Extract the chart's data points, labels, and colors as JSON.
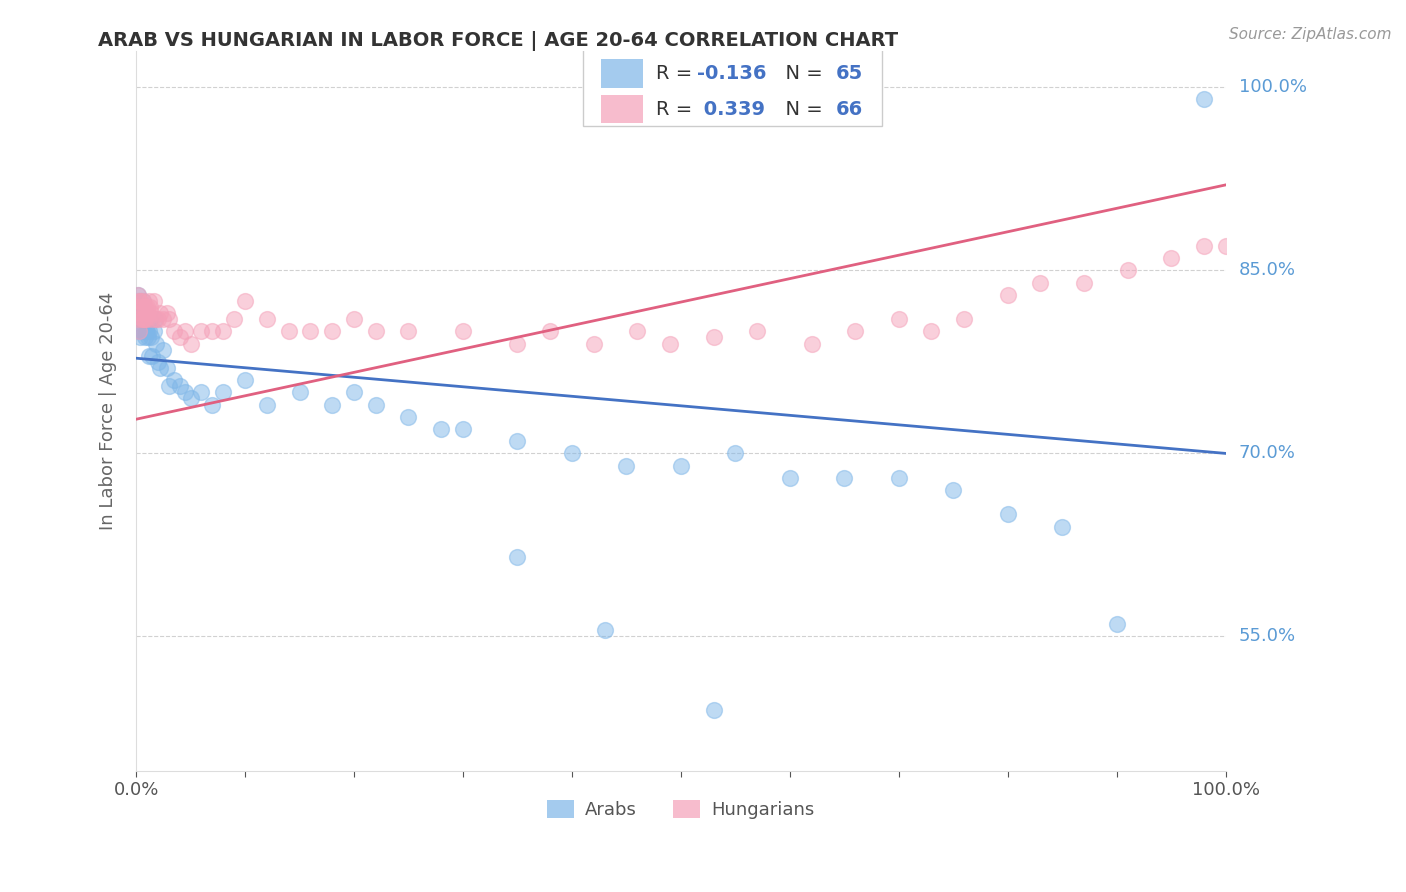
{
  "title": "ARAB VS HUNGARIAN IN LABOR FORCE | AGE 20-64 CORRELATION CHART",
  "source_text": "Source: ZipAtlas.com",
  "ylabel": "In Labor Force | Age 20-64",
  "xlim": [
    0.0,
    1.0
  ],
  "ylim": [
    0.44,
    1.03
  ],
  "yticks": [
    0.55,
    0.7,
    0.85,
    1.0
  ],
  "ytick_labels": [
    "55.0%",
    "70.0%",
    "85.0%",
    "100.0%"
  ],
  "xticks": [
    0.0,
    0.1,
    0.2,
    0.3,
    0.4,
    0.5,
    0.6,
    0.7,
    0.8,
    0.9,
    1.0
  ],
  "xtick_labels": [
    "0.0%",
    "",
    "",
    "",
    "",
    "",
    "",
    "",
    "",
    "",
    "100.0%"
  ],
  "arab_color": "#7EB6E8",
  "hungarian_color": "#F4A0B8",
  "arab_R": -0.136,
  "arab_N": 65,
  "hungarian_R": 0.339,
  "hungarian_N": 66,
  "background_color": "#ffffff",
  "grid_color": "#cccccc",
  "title_color": "#333333",
  "axis_label_color": "#666666",
  "right_label_color": "#5B9BD5",
  "arab_line_color": "#4472C4",
  "hungarian_line_color": "#E06080",
  "arab_line_x": [
    0.0,
    1.0
  ],
  "arab_line_y": [
    0.778,
    0.7
  ],
  "hungarian_line_x": [
    0.0,
    1.0
  ],
  "hungarian_line_y": [
    0.728,
    0.92
  ],
  "legend_color": "#4472C4",
  "arab_scatter_x": [
    0.001,
    0.002,
    0.002,
    0.003,
    0.003,
    0.004,
    0.004,
    0.005,
    0.005,
    0.006,
    0.006,
    0.007,
    0.007,
    0.008,
    0.008,
    0.009,
    0.009,
    0.01,
    0.01,
    0.011,
    0.012,
    0.012,
    0.013,
    0.014,
    0.015,
    0.016,
    0.017,
    0.018,
    0.02,
    0.022,
    0.025,
    0.028,
    0.03,
    0.035,
    0.04,
    0.045,
    0.05,
    0.06,
    0.07,
    0.08,
    0.1,
    0.12,
    0.15,
    0.18,
    0.2,
    0.22,
    0.25,
    0.28,
    0.3,
    0.35,
    0.4,
    0.45,
    0.5,
    0.55,
    0.6,
    0.65,
    0.7,
    0.75,
    0.8,
    0.85,
    0.9,
    0.35,
    0.43,
    0.53,
    0.98
  ],
  "arab_scatter_y": [
    0.82,
    0.83,
    0.81,
    0.8,
    0.825,
    0.815,
    0.795,
    0.8,
    0.82,
    0.825,
    0.81,
    0.8,
    0.815,
    0.795,
    0.81,
    0.8,
    0.815,
    0.8,
    0.81,
    0.795,
    0.8,
    0.78,
    0.81,
    0.795,
    0.78,
    0.8,
    0.81,
    0.79,
    0.775,
    0.77,
    0.785,
    0.77,
    0.755,
    0.76,
    0.755,
    0.75,
    0.745,
    0.75,
    0.74,
    0.75,
    0.76,
    0.74,
    0.75,
    0.74,
    0.75,
    0.74,
    0.73,
    0.72,
    0.72,
    0.71,
    0.7,
    0.69,
    0.69,
    0.7,
    0.68,
    0.68,
    0.68,
    0.67,
    0.65,
    0.64,
    0.56,
    0.615,
    0.555,
    0.49,
    0.99
  ],
  "hungarian_scatter_x": [
    0.001,
    0.002,
    0.002,
    0.003,
    0.003,
    0.004,
    0.004,
    0.005,
    0.005,
    0.006,
    0.006,
    0.007,
    0.007,
    0.008,
    0.008,
    0.009,
    0.01,
    0.01,
    0.011,
    0.012,
    0.013,
    0.014,
    0.015,
    0.016,
    0.018,
    0.02,
    0.022,
    0.025,
    0.028,
    0.03,
    0.035,
    0.04,
    0.045,
    0.05,
    0.06,
    0.07,
    0.08,
    0.09,
    0.1,
    0.12,
    0.14,
    0.16,
    0.18,
    0.2,
    0.22,
    0.25,
    0.3,
    0.35,
    0.38,
    0.42,
    0.46,
    0.49,
    0.53,
    0.57,
    0.62,
    0.66,
    0.7,
    0.73,
    0.76,
    0.8,
    0.83,
    0.87,
    0.91,
    0.95,
    0.98,
    1.0
  ],
  "hungarian_scatter_y": [
    0.82,
    0.83,
    0.81,
    0.825,
    0.8,
    0.815,
    0.825,
    0.82,
    0.81,
    0.825,
    0.81,
    0.82,
    0.81,
    0.82,
    0.81,
    0.815,
    0.82,
    0.81,
    0.815,
    0.825,
    0.82,
    0.815,
    0.81,
    0.825,
    0.81,
    0.81,
    0.815,
    0.81,
    0.815,
    0.81,
    0.8,
    0.795,
    0.8,
    0.79,
    0.8,
    0.8,
    0.8,
    0.81,
    0.825,
    0.81,
    0.8,
    0.8,
    0.8,
    0.81,
    0.8,
    0.8,
    0.8,
    0.79,
    0.8,
    0.79,
    0.8,
    0.79,
    0.795,
    0.8,
    0.79,
    0.8,
    0.81,
    0.8,
    0.81,
    0.83,
    0.84,
    0.84,
    0.85,
    0.86,
    0.87,
    0.87
  ]
}
